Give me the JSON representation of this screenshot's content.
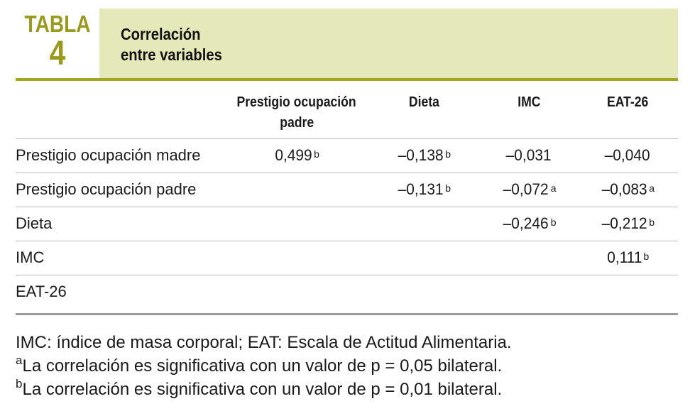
{
  "header": {
    "label_word": "TABLA",
    "label_number": "4",
    "title_line1": "Correlación",
    "title_line2": "entre variables"
  },
  "table": {
    "columns": [
      {
        "line1": "Prestigio ocupación",
        "line2": "padre"
      },
      {
        "line1": "Dieta",
        "line2": ""
      },
      {
        "line1": "IMC",
        "line2": ""
      },
      {
        "line1": "EAT-26",
        "line2": ""
      }
    ],
    "rows": [
      {
        "label": "Prestigio ocupación madre",
        "cells": [
          {
            "v": "0,499",
            "sup": "b"
          },
          {
            "v": "–0,138",
            "sup": "b"
          },
          {
            "v": "–0,031",
            "sup": ""
          },
          {
            "v": "–0,040",
            "sup": ""
          }
        ]
      },
      {
        "label": "Prestigio ocupación padre",
        "cells": [
          {
            "v": "",
            "sup": ""
          },
          {
            "v": "–0,131",
            "sup": "b"
          },
          {
            "v": "–0,072",
            "sup": "a"
          },
          {
            "v": "–0,083",
            "sup": "a"
          }
        ]
      },
      {
        "label": "Dieta",
        "cells": [
          {
            "v": "",
            "sup": ""
          },
          {
            "v": "",
            "sup": ""
          },
          {
            "v": "–0,246",
            "sup": "b"
          },
          {
            "v": "–0,212",
            "sup": "b"
          }
        ]
      },
      {
        "label": "IMC",
        "cells": [
          {
            "v": "",
            "sup": ""
          },
          {
            "v": "",
            "sup": ""
          },
          {
            "v": "",
            "sup": ""
          },
          {
            "v": "0,111",
            "sup": "b"
          }
        ]
      },
      {
        "label": "EAT-26",
        "cells": [
          {
            "v": "",
            "sup": ""
          },
          {
            "v": "",
            "sup": ""
          },
          {
            "v": "",
            "sup": ""
          },
          {
            "v": "",
            "sup": ""
          }
        ]
      }
    ]
  },
  "notes": {
    "abbrev": "IMC: índice de masa corporal; EAT: Escala de Actitud Alimentaria.",
    "note_a_mark": "a",
    "note_a_text": "La correlación es significativa con un valor de p = 0,05 bilateral.",
    "note_b_mark": "b",
    "note_b_text": "La correlación es significativa con un valor de p = 0,01 bilateral."
  },
  "colors": {
    "accent": "#9a9a1c",
    "title_bg": "#e5e9ba",
    "rule": "#a6a61e"
  }
}
